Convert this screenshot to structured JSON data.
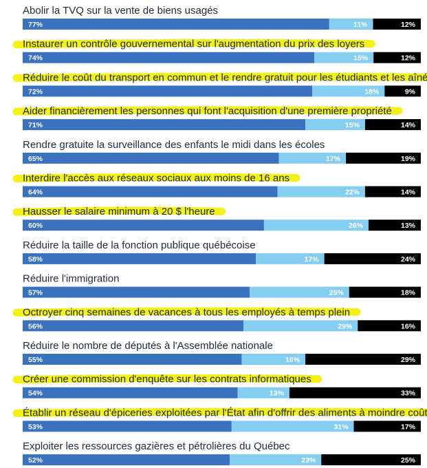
{
  "colors": {
    "agree": "#3a72c0",
    "disagree": "#86cdf2",
    "unsure": "#000000",
    "highlight": "#f2f000",
    "label": "#1e2a3a"
  },
  "chart_data": {
    "type": "bar",
    "stacked": true,
    "orientation": "horizontal",
    "title": "",
    "xlabel": "",
    "ylabel": "",
    "xlim": [
      0,
      100
    ],
    "grid": false,
    "legend": "none",
    "categories": [
      "Abolir la TVQ sur la vente de biens usagés",
      "Instaurer un contrôle gouvernemental  sur l'augmentation du prix des loyers",
      "Réduire le coût du transport en commun et le rendre  gratuit pour les étudiants et les aînés",
      "Aider financièrement les personnes qui font l'acquisition d'une première propriété",
      "Rendre gratuite la surveillance des  enfants le midi dans les écoles",
      "Interdire l'accès aux réseaux sociaux  aux moins de 16 ans",
      "Hausser le salaire minimum  à 20 $ l'heure",
      "Réduire la taille de la  fonction publique québécoise",
      "Réduire  l'immigration",
      "Octroyer cinq semaines de vacances  à tous les employés à temps plein",
      "Réduire le nombre de députés  à l'Assemblée nationale",
      "Créer une commission d'enquête  sur les contrats informatiques",
      "Établir un réseau d'épiceries exploitées par  l'État afin d'offrir des aliments à moindre coût",
      "Exploiter les ressources gazières  et pétrolières du Québec"
    ],
    "series": [
      {
        "values": [
          77,
          74,
          72,
          71,
          65,
          64,
          60,
          58,
          57,
          56,
          55,
          54,
          53,
          52
        ]
      },
      {
        "values": [
          11,
          15,
          18,
          15,
          17,
          22,
          26,
          17,
          25,
          29,
          16,
          13,
          31,
          23
        ]
      },
      {
        "values": [
          12,
          12,
          9,
          14,
          19,
          14,
          13,
          24,
          18,
          16,
          29,
          33,
          17,
          25
        ]
      }
    ],
    "highlighted": [
      false,
      true,
      true,
      true,
      false,
      true,
      true,
      false,
      false,
      true,
      false,
      true,
      true,
      false
    ],
    "value_suffix": "%"
  }
}
